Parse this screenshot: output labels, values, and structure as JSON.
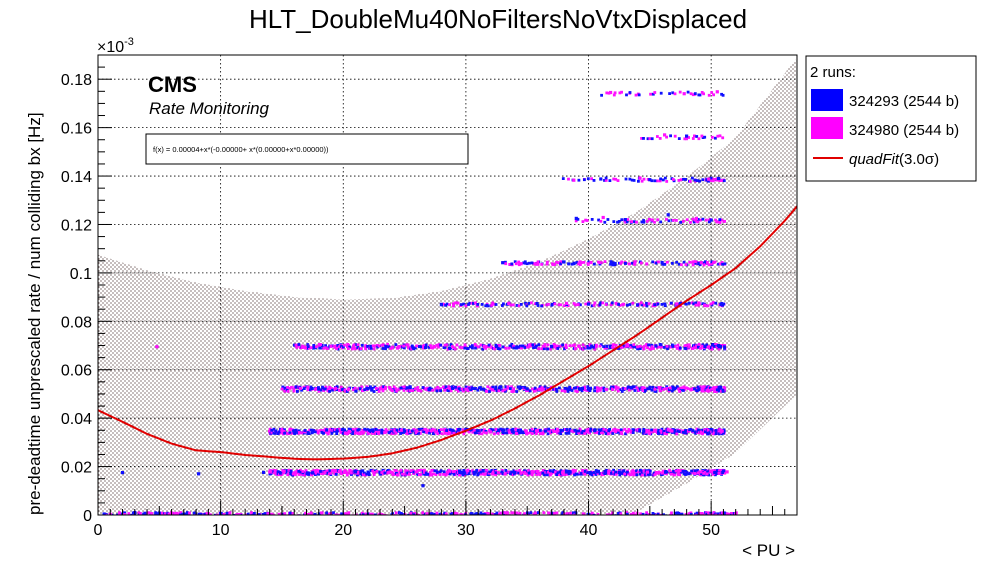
{
  "chart_data": {
    "type": "scatter",
    "title": "HLT_DoubleMu40NoFiltersNoVtxDisplaced",
    "xlabel": "< PU >",
    "ylabel": "pre-deadtime unprescaled rate / num colliding bx [Hz]",
    "y_exponent": "×10",
    "y_exponent_power": "-3",
    "xlim": [
      0,
      57
    ],
    "ylim": [
      0,
      0.19
    ],
    "x_ticks": [
      0,
      10,
      20,
      30,
      40,
      50
    ],
    "y_ticks": [
      0,
      0.02,
      0.04,
      0.06,
      0.08,
      0.1,
      0.12,
      0.14,
      0.16,
      0.18
    ],
    "x_tick_labels": [
      "0",
      "10",
      "20",
      "30",
      "40",
      "50"
    ],
    "y_tick_labels": [
      "0",
      "0.02",
      "0.04",
      "0.06",
      "0.08",
      "0.1",
      "0.12",
      "0.14",
      "0.16",
      "0.18"
    ],
    "grid": true,
    "cms_label": "CMS",
    "cms_sublabel": "Rate Monitoring",
    "fit_formula": "f(x) = 0.00004+x*(-0.00000+ x*(0.00000+x*0.00000))",
    "fit": {
      "name": "quadFit(3.0σ)",
      "color": "#e00000",
      "points": [
        [
          0,
          0.0433
        ],
        [
          2,
          0.0385
        ],
        [
          4,
          0.0335
        ],
        [
          6,
          0.0295
        ],
        [
          8,
          0.0267
        ],
        [
          10,
          0.026
        ],
        [
          12,
          0.0248
        ],
        [
          14,
          0.024
        ],
        [
          16,
          0.0232
        ],
        [
          18,
          0.023
        ],
        [
          20,
          0.0233
        ],
        [
          22,
          0.024
        ],
        [
          24,
          0.0255
        ],
        [
          26,
          0.0278
        ],
        [
          28,
          0.031
        ],
        [
          30,
          0.0348
        ],
        [
          32,
          0.039
        ],
        [
          34,
          0.044
        ],
        [
          36,
          0.0495
        ],
        [
          38,
          0.0555
        ],
        [
          40,
          0.0615
        ],
        [
          42,
          0.068
        ],
        [
          44,
          0.0745
        ],
        [
          46,
          0.0815
        ],
        [
          48,
          0.0885
        ],
        [
          50,
          0.095
        ],
        [
          52,
          0.102
        ],
        [
          54,
          0.111
        ],
        [
          56,
          0.1215
        ],
        [
          57,
          0.1275
        ]
      ]
    },
    "band": {
      "upper": [
        [
          0,
          0.1075
        ],
        [
          4,
          0.101
        ],
        [
          8,
          0.096
        ],
        [
          12,
          0.0925
        ],
        [
          16,
          0.09
        ],
        [
          20,
          0.089
        ],
        [
          24,
          0.0895
        ],
        [
          28,
          0.0925
        ],
        [
          32,
          0.0975
        ],
        [
          36,
          0.1045
        ],
        [
          40,
          0.114
        ],
        [
          44,
          0.1255
        ],
        [
          48,
          0.1395
        ],
        [
          52,
          0.156
        ],
        [
          57,
          0.189
        ]
      ],
      "lower": [
        [
          0,
          0.0
        ],
        [
          40,
          0.0
        ],
        [
          42.5,
          0.0
        ],
        [
          44,
          0.0015
        ],
        [
          48,
          0.013
        ],
        [
          52,
          0.0255
        ],
        [
          57,
          0.05
        ]
      ]
    },
    "legend": {
      "header": "2 runs:",
      "entries": [
        {
          "label": "324293 (2544 b)",
          "color": "#0000ff",
          "kind": "box"
        },
        {
          "label": "324980 (2544 b)",
          "color": "#ff00ff",
          "kind": "box"
        },
        {
          "label": "quadFit(3.0σ)",
          "label_main": "quadFit",
          "label_arg": "(3.0σ)",
          "color": "#e00000",
          "kind": "line"
        }
      ]
    },
    "bands": [
      {
        "y": 0.0,
        "x_start": 0.5,
        "x_end": 52,
        "density": 4
      },
      {
        "y": 0.0175,
        "x_start": 14,
        "x_end": 51,
        "density": 7
      },
      {
        "y": 0.0345,
        "x_start": 14,
        "x_end": 51,
        "density": 7
      },
      {
        "y": 0.052,
        "x_start": 15,
        "x_end": 51,
        "density": 5
      },
      {
        "y": 0.0695,
        "x_start": 16,
        "x_end": 51,
        "density": 4
      },
      {
        "y": 0.087,
        "x_start": 28,
        "x_end": 51,
        "density": 3
      },
      {
        "y": 0.104,
        "x_start": 33,
        "x_end": 51,
        "density": 3
      },
      {
        "y": 0.1215,
        "x_start": 39,
        "x_end": 51,
        "density": 2
      },
      {
        "y": 0.1385,
        "x_start": 38,
        "x_end": 51,
        "density": 2
      },
      {
        "y": 0.156,
        "x_start": 44,
        "x_end": 51,
        "density": 1
      },
      {
        "y": 0.174,
        "x_start": 41,
        "x_end": 51,
        "density": 1
      }
    ],
    "series": [
      {
        "name": "324293 (2544 b)",
        "color": "#1010ff",
        "points": [
          [
            0.5,
            0.0004
          ],
          [
            2.0,
            0.0175
          ],
          [
            3.0,
            0.001
          ],
          [
            5.0,
            0.0008
          ],
          [
            7.0,
            0.0004
          ],
          [
            8.2,
            0.017
          ],
          [
            10.0,
            0.0006
          ],
          [
            13.5,
            0.0176
          ],
          [
            14.5,
            0.0346
          ],
          [
            16.0,
            0.0348
          ],
          [
            17.5,
            0.0174
          ],
          [
            18.0,
            0.052
          ],
          [
            19.5,
            0.0347
          ],
          [
            21.0,
            0.0178
          ],
          [
            22.0,
            0.0522
          ],
          [
            23.5,
            0.0695
          ],
          [
            25.0,
            0.0346
          ],
          [
            26.5,
            0.0121
          ],
          [
            27.0,
            0.0518
          ],
          [
            28.0,
            0.087
          ],
          [
            29.5,
            0.0176
          ],
          [
            30.5,
            0.0523
          ],
          [
            31.0,
            0.0348
          ],
          [
            32.5,
            0.0696
          ],
          [
            33.0,
            0.1042
          ],
          [
            34.0,
            0.0175
          ],
          [
            35.0,
            0.0521
          ],
          [
            35.8,
            0.0873
          ],
          [
            36.5,
            0.0347
          ],
          [
            37.0,
            0.0695
          ],
          [
            38.0,
            0.1045
          ],
          [
            38.5,
            0.0177
          ],
          [
            39.0,
            0.1225
          ],
          [
            39.5,
            0.0523
          ],
          [
            40.0,
            0.0871
          ],
          [
            40.5,
            0.0349
          ],
          [
            41.0,
            0.1388
          ],
          [
            41.5,
            0.0697
          ],
          [
            42.0,
            0.1041
          ],
          [
            42.5,
            0.0176
          ],
          [
            43.0,
            0.122
          ],
          [
            43.5,
            0.0525
          ],
          [
            44.0,
            0.0868
          ],
          [
            44.5,
            0.0346
          ],
          [
            45.0,
            0.1385
          ],
          [
            45.5,
            0.0698
          ],
          [
            46.0,
            0.1043
          ],
          [
            46.5,
            0.124
          ],
          [
            47.0,
            0.0522
          ],
          [
            47.5,
            0.0873
          ],
          [
            48.0,
            0.1565
          ],
          [
            48.5,
            0.0348
          ],
          [
            49.0,
            0.1039
          ],
          [
            49.5,
            0.0696
          ],
          [
            50.0,
            0.1218
          ],
          [
            50.3,
            0.0175
          ],
          [
            50.6,
            0.139
          ],
          [
            50.8,
            0.087
          ]
        ]
      },
      {
        "name": "324980 (2544 b)",
        "color": "#ff10ff",
        "points": [
          [
            1.0,
            0.0003
          ],
          [
            4.8,
            0.0695
          ],
          [
            6.0,
            0.0008
          ],
          [
            9.0,
            0.0005
          ],
          [
            11.5,
            0.0002
          ],
          [
            14.0,
            0.0178
          ],
          [
            15.0,
            0.0349
          ],
          [
            16.5,
            0.0523
          ],
          [
            18.5,
            0.0176
          ],
          [
            19.0,
            0.0697
          ],
          [
            20.5,
            0.0345
          ],
          [
            22.5,
            0.0175
          ],
          [
            23.0,
            0.0524
          ],
          [
            24.5,
            0.0693
          ],
          [
            26.0,
            0.0346
          ],
          [
            28.5,
            0.0177
          ],
          [
            29.0,
            0.0872
          ],
          [
            30.0,
            0.0519
          ],
          [
            31.5,
            0.0697
          ],
          [
            32.0,
            0.0343
          ],
          [
            33.5,
            0.0874
          ],
          [
            34.5,
            0.1038
          ],
          [
            35.5,
            0.0178
          ],
          [
            36.0,
            0.0519
          ],
          [
            37.5,
            0.0347
          ],
          [
            38.2,
            0.0874
          ],
          [
            38.8,
            0.1383
          ],
          [
            39.2,
            0.0698
          ],
          [
            40.2,
            0.1043
          ],
          [
            40.8,
            0.0518
          ],
          [
            41.2,
            0.1229
          ],
          [
            41.8,
            0.1745
          ],
          [
            42.2,
            0.0345
          ],
          [
            42.8,
            0.0869
          ],
          [
            43.2,
            0.0698
          ],
          [
            43.8,
            0.1046
          ],
          [
            44.2,
            0.1392
          ],
          [
            44.8,
            0.0177
          ],
          [
            45.2,
            0.1218
          ],
          [
            45.8,
            0.0524
          ],
          [
            46.2,
            0.157
          ],
          [
            46.8,
            0.0347
          ],
          [
            47.2,
            0.0872
          ],
          [
            47.8,
            0.174
          ],
          [
            48.2,
            0.0695
          ],
          [
            48.8,
            0.1225
          ],
          [
            49.2,
            0.1042
          ],
          [
            49.8,
            0.1387
          ],
          [
            50.2,
            0.0523
          ],
          [
            50.5,
            0.1748
          ],
          [
            50.9,
            0.0346
          ],
          [
            51.3,
            0.0178
          ],
          [
            52.0,
            0.0002
          ]
        ]
      }
    ]
  }
}
